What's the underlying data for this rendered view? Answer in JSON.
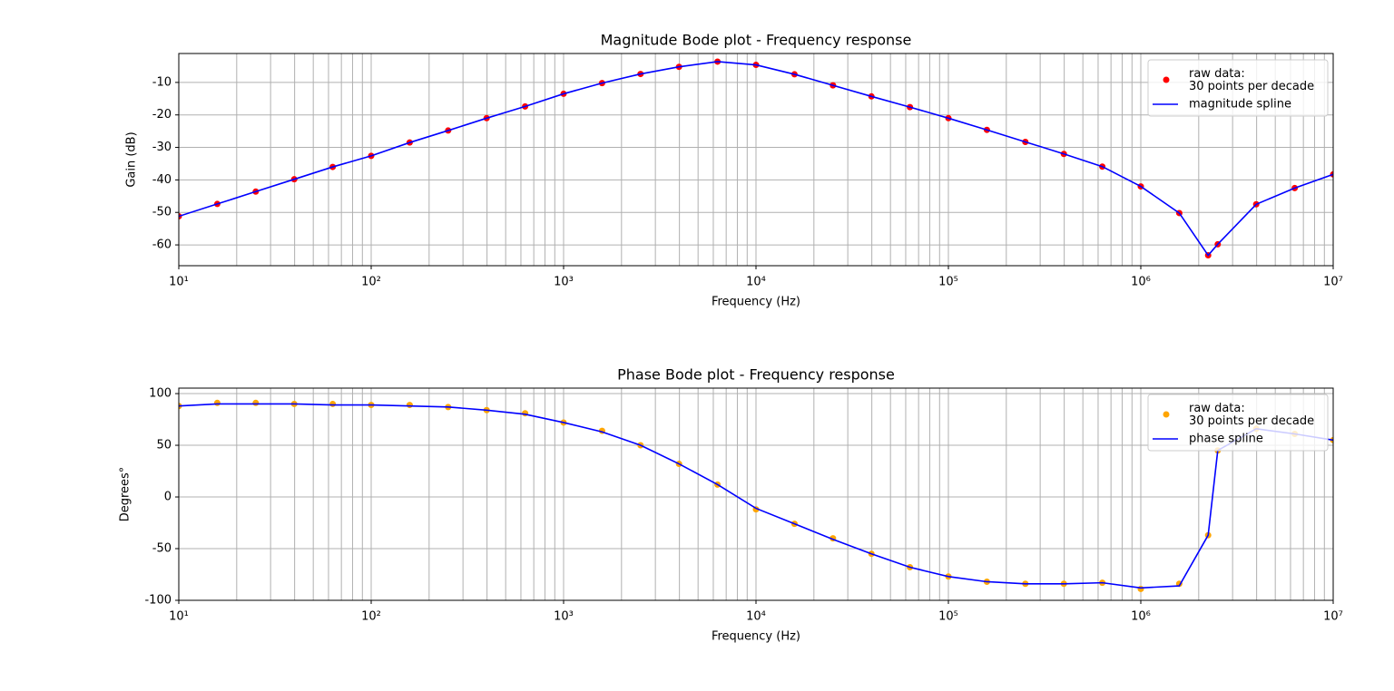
{
  "chart_data": [
    {
      "type": "line",
      "title": "Magnitude Bode plot - Frequency response",
      "x_label": "Frequency (Hz)",
      "y_label": "Gain (dB)",
      "xscale": "log",
      "grid": true,
      "minor_grid": true,
      "legend": "upper right",
      "xlim": [
        10,
        10000000
      ],
      "ylim": [
        -66.4,
        -1.1
      ],
      "xticks": [
        {
          "value": 10,
          "label": "10¹"
        },
        {
          "value": 100,
          "label": "10²"
        },
        {
          "value": 1000,
          "label": "10³"
        },
        {
          "value": 10000,
          "label": "10⁴"
        },
        {
          "value": 100000,
          "label": "10⁵"
        },
        {
          "value": 1000000,
          "label": "10⁶"
        },
        {
          "value": 10000000,
          "label": "10⁷"
        }
      ],
      "yticks": [
        -60,
        -50,
        -40,
        -30,
        -20,
        -10
      ],
      "x": [
        10,
        15.85,
        25.12,
        39.81,
        63.1,
        100,
        158.5,
        251.2,
        398.1,
        631,
        1000,
        1585,
        2512,
        3981,
        6310,
        10000,
        15850,
        25120,
        39810,
        63100,
        100000,
        158500,
        251200,
        398100,
        631000,
        1000000,
        1585000,
        2239000,
        2512000,
        3981000,
        6310000,
        10000000
      ],
      "series": [
        {
          "name": "raw data:\n30 points per decade",
          "kind": "scatter",
          "color": "#ff0000",
          "values": [
            -51.2,
            -47.4,
            -43.6,
            -39.8,
            -36.0,
            -32.6,
            -28.5,
            -24.8,
            -21.0,
            -17.4,
            -13.5,
            -10.2,
            -7.4,
            -5.2,
            -3.6,
            -4.6,
            -7.5,
            -10.9,
            -14.3,
            -17.6,
            -21.0,
            -24.6,
            -28.3,
            -32.0,
            -35.9,
            -42.0,
            -50.2,
            -63.2,
            -59.8,
            -47.5,
            -42.5,
            -38.3
          ]
        },
        {
          "name": "magnitude spline",
          "kind": "line",
          "color": "#0000ff",
          "values": [
            -51.2,
            -47.4,
            -43.6,
            -39.8,
            -36.0,
            -32.6,
            -28.5,
            -24.8,
            -21.0,
            -17.4,
            -13.5,
            -10.2,
            -7.4,
            -5.2,
            -3.6,
            -4.6,
            -7.5,
            -10.9,
            -14.3,
            -17.6,
            -21.0,
            -24.6,
            -28.3,
            -32.0,
            -35.9,
            -42.0,
            -50.2,
            -63.2,
            -59.8,
            -47.5,
            -42.5,
            -38.3
          ]
        }
      ]
    },
    {
      "type": "line",
      "title": "Phase Bode plot - Frequency response",
      "x_label": "Frequency (Hz)",
      "y_label": "Degrees°",
      "xscale": "log",
      "grid": true,
      "minor_grid": true,
      "legend": "upper right",
      "xlim": [
        10,
        10000000
      ],
      "ylim": [
        -100,
        105.3
      ],
      "xticks": [
        {
          "value": 10,
          "label": "10¹"
        },
        {
          "value": 100,
          "label": "10²"
        },
        {
          "value": 1000,
          "label": "10³"
        },
        {
          "value": 10000,
          "label": "10⁴"
        },
        {
          "value": 100000,
          "label": "10⁵"
        },
        {
          "value": 1000000,
          "label": "10⁶"
        },
        {
          "value": 10000000,
          "label": "10⁷"
        }
      ],
      "yticks": [
        -100,
        -50,
        0,
        50,
        100
      ],
      "x": [
        10,
        15.85,
        25.12,
        39.81,
        63.1,
        100,
        158.5,
        251.2,
        398.1,
        631,
        1000,
        1585,
        2512,
        3981,
        6310,
        10000,
        15850,
        25120,
        39810,
        63100,
        100000,
        158500,
        251200,
        398100,
        631000,
        1000000,
        1585000,
        2239000,
        2512000,
        3981000,
        6310000,
        10000000
      ],
      "series": [
        {
          "name": "raw data:\n30 points per decade",
          "kind": "scatter",
          "color": "#ffa500",
          "values": [
            88,
            91,
            91,
            90,
            90,
            89,
            89,
            87,
            84,
            81,
            72,
            64,
            50,
            32,
            12,
            -12,
            -26,
            -40,
            -55,
            -68,
            -77,
            -82,
            -84,
            -84,
            -83,
            -89,
            -84,
            -37,
            45,
            66,
            61,
            55
          ]
        },
        {
          "name": "phase spline",
          "kind": "line",
          "color": "#0000ff",
          "values": [
            88,
            90,
            90,
            90,
            89,
            89,
            88,
            87,
            84,
            80,
            72,
            63,
            50,
            32,
            12,
            -11,
            -26,
            -41,
            -55,
            -68,
            -77,
            -82,
            -84,
            -84,
            -83,
            -88,
            -86,
            -37,
            45,
            66,
            61,
            55
          ]
        }
      ]
    }
  ]
}
